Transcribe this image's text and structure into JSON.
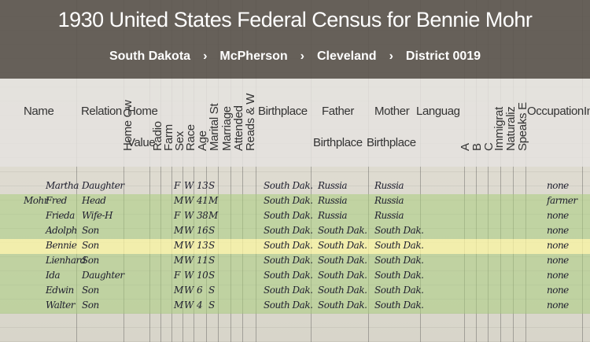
{
  "title": "1930 United States Federal Census for Bennie Mohr",
  "breadcrumbs": [
    "South Dakota",
    "McPherson",
    "Cleveland",
    "District 0019"
  ],
  "breadcrumb_separator": "›",
  "columns": {
    "name": "Name",
    "relation": "Relation",
    "home": "Home",
    "value": "Value",
    "home_owned": "Home Ow",
    "radio": "Radio",
    "farm": "Farm",
    "sex": "Sex",
    "race": "Race",
    "age": "Age",
    "marital": "Marital St",
    "marriage": "Marriage",
    "attended": "Attended",
    "reads": "Reads & W",
    "birthplace": "Birthplace",
    "father_l1": "Father",
    "father_l2": "Birthplace",
    "mother_l1": "Mother",
    "mother_l2": "Birthplace",
    "language": "Languag",
    "a": "A",
    "b": "B",
    "c": "C",
    "immigration": "Immigrat",
    "naturalization": "Naturaliz",
    "speaks": "Speaks E",
    "occupation": "Occupation",
    "industry": "In"
  },
  "rows": [
    {
      "surname": "",
      "given": "Martha",
      "relation": "Daughter",
      "sex": "F",
      "race": "W",
      "age": "13",
      "marital": "S",
      "birthplace": "South Dak.",
      "father": "Russia",
      "mother": "Russia",
      "occupation": "none",
      "hl": ""
    },
    {
      "surname": "Mohr",
      "given": "Fred",
      "relation": "Head",
      "sex": "M",
      "race": "W",
      "age": "41",
      "marital": "M",
      "birthplace": "South Dak.",
      "father": "Russia",
      "mother": "Russia",
      "occupation": "farmer",
      "hl": "g"
    },
    {
      "surname": "",
      "given": "Frieda",
      "relation": "Wife-H",
      "sex": "F",
      "race": "W",
      "age": "38",
      "marital": "M",
      "birthplace": "South Dak.",
      "father": "Russia",
      "mother": "Russia",
      "occupation": "none",
      "hl": "g"
    },
    {
      "surname": "",
      "given": "Adolph",
      "relation": "Son",
      "sex": "M",
      "race": "W",
      "age": "16",
      "marital": "S",
      "birthplace": "South Dak.",
      "father": "South Dak.",
      "mother": "South Dak.",
      "occupation": "none",
      "hl": "g"
    },
    {
      "surname": "",
      "given": "Bennie",
      "relation": "Son",
      "sex": "M",
      "race": "W",
      "age": "13",
      "marital": "S",
      "birthplace": "South Dak.",
      "father": "South Dak.",
      "mother": "South Dak.",
      "occupation": "none",
      "hl": "y"
    },
    {
      "surname": "",
      "given": "Lienhard",
      "relation": "Son",
      "sex": "M",
      "race": "W",
      "age": "11",
      "marital": "S",
      "birthplace": "South Dak.",
      "father": "South Dak.",
      "mother": "South Dak.",
      "occupation": "none",
      "hl": "g"
    },
    {
      "surname": "",
      "given": "Ida",
      "relation": "Daughter",
      "sex": "F",
      "race": "W",
      "age": "10",
      "marital": "S",
      "birthplace": "South Dak.",
      "father": "South Dak.",
      "mother": "South Dak.",
      "occupation": "none",
      "hl": "g"
    },
    {
      "surname": "",
      "given": "Edwin",
      "relation": "Son",
      "sex": "M",
      "race": "W",
      "age": "6",
      "marital": "S",
      "birthplace": "South Dak.",
      "father": "South Dak.",
      "mother": "South Dak.",
      "occupation": "none",
      "hl": "g"
    },
    {
      "surname": "",
      "given": "Walter",
      "relation": "Son",
      "sex": "M",
      "race": "W",
      "age": "4",
      "marital": "S",
      "birthplace": "South Dak.",
      "father": "South Dak.",
      "mother": "South Dak.",
      "occupation": "none",
      "hl": "g"
    }
  ]
}
